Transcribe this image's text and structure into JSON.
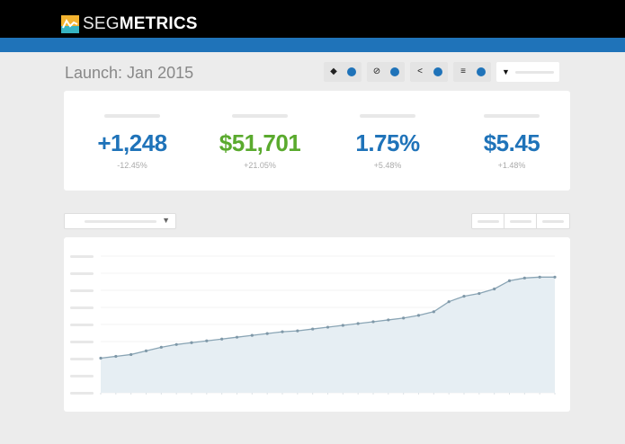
{
  "header": {
    "brand_light": "SEG",
    "brand_bold": "METRICS",
    "logo_colors": {
      "top": "#f3b32f",
      "bottom": "#36b3c2"
    },
    "nav_color": "#1f73b9"
  },
  "page": {
    "title": "Launch: Jan 2015"
  },
  "filters": [
    {
      "icon": "tag-icon",
      "glyph": "◆"
    },
    {
      "icon": "compass-icon",
      "glyph": "⊘"
    },
    {
      "icon": "share-icon",
      "glyph": "<"
    },
    {
      "icon": "cart-icon",
      "glyph": "≡"
    }
  ],
  "filter_search": {
    "icon": "funnel-icon",
    "glyph": "▼"
  },
  "kpis": [
    {
      "value": "+1,248",
      "delta": "-12.45%",
      "color": "#1f73b9"
    },
    {
      "value": "$51,701",
      "delta": "+21.05%",
      "color": "#5aaa2e"
    },
    {
      "value": "1.75%",
      "delta": "+5.48%",
      "color": "#1f73b9"
    },
    {
      "value": "$5.45",
      "delta": "+1.48%",
      "color": "#1f73b9"
    }
  ],
  "range_select": {
    "caret": "▼"
  },
  "chart_data": {
    "type": "area",
    "title": "",
    "xlabel": "",
    "ylabel": "",
    "grid": true,
    "y_gridlines": 9,
    "x": [
      1,
      2,
      3,
      4,
      5,
      6,
      7,
      8,
      9,
      10,
      11,
      12,
      13,
      14,
      15,
      16,
      17,
      18,
      19,
      20,
      21,
      22,
      23,
      24,
      25,
      26,
      27,
      28,
      29,
      30,
      31
    ],
    "values": [
      38,
      40,
      42,
      46,
      50,
      53,
      55,
      57,
      59,
      61,
      63,
      65,
      67,
      68,
      70,
      72,
      74,
      76,
      78,
      80,
      82,
      85,
      89,
      100,
      106,
      109,
      114,
      123,
      126,
      127,
      127
    ],
    "ylim": [
      0,
      150
    ],
    "line_color": "#8aa5b5",
    "fill_color": "#e6eef3"
  }
}
